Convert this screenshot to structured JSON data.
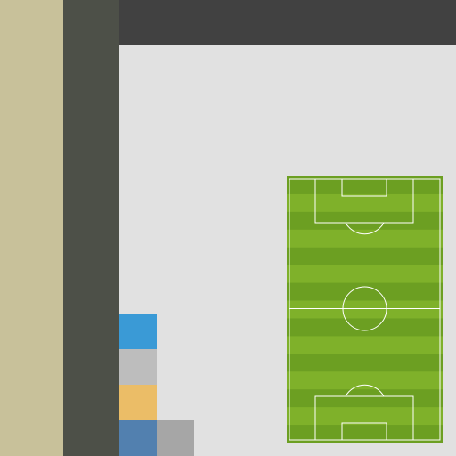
{
  "colors": {
    "sidebar_primary": "#c8c19a",
    "sidebar_secondary": "#4d5048",
    "topbar": "#414141",
    "canvas": "#e1e1e1",
    "pitch_light": "#7fb12a",
    "pitch_dark": "#6c9f22",
    "pitch_lines": "#ffffff"
  },
  "palette": {
    "swatches": [
      {
        "color": "#3a9ad6"
      },
      {
        "color": "#bdbdbd"
      },
      {
        "color": "#ebbd67"
      },
      {
        "color": "#5280af"
      },
      {
        "color": "#a6a6a6"
      }
    ]
  },
  "pitch": {
    "icon": "soccer-field-icon",
    "stripe_count": 15
  }
}
